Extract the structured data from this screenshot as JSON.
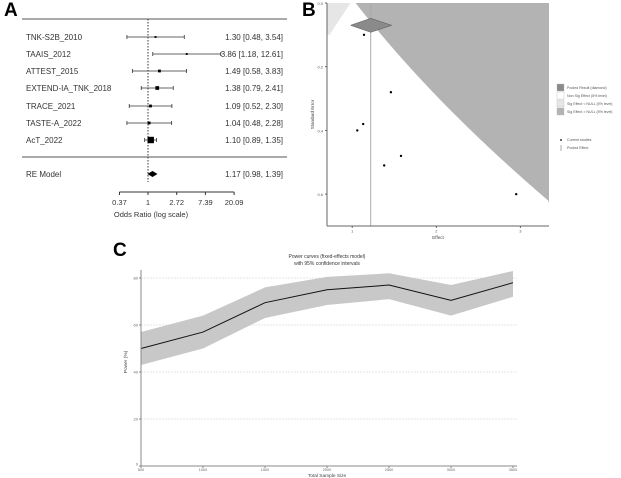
{
  "panels": {
    "a": "A",
    "b": "B",
    "c": "C"
  },
  "chart_data": [
    {
      "type": "forest",
      "panel": "A",
      "xlabel": "Odds Ratio (log scale)",
      "x_scale": "log",
      "x_ticks": [
        0.37,
        1,
        2.72,
        7.39,
        20.09
      ],
      "x_tick_labels": [
        "0.37",
        "1",
        "2.72",
        "7.39",
        "20.09"
      ],
      "reference_line": 1,
      "studies": [
        {
          "name": "TNK-S2B_2010",
          "or": 1.3,
          "lo": 0.48,
          "hi": 3.54,
          "label": "1.30 [0.48,  3.54]",
          "weight": 1
        },
        {
          "name": "TAAIS_2012",
          "or": 3.86,
          "lo": 1.18,
          "hi": 12.61,
          "label": "3.86 [1.18, 12.61]",
          "weight": 1
        },
        {
          "name": "ATTEST_2015",
          "or": 1.49,
          "lo": 0.58,
          "hi": 3.83,
          "label": "1.49 [0.58,  3.83]",
          "weight": 2
        },
        {
          "name": "EXTEND-IA_TNK_2018",
          "or": 1.38,
          "lo": 0.79,
          "hi": 2.41,
          "label": "1.38 [0.79,  2.41]",
          "weight": 3
        },
        {
          "name": "TRACE_2021",
          "or": 1.09,
          "lo": 0.52,
          "hi": 2.3,
          "label": "1.09 [0.52,  2.30]",
          "weight": 2
        },
        {
          "name": "TASTE-A_2022",
          "or": 1.04,
          "lo": 0.48,
          "hi": 2.28,
          "label": "1.04 [0.48,  2.28]",
          "weight": 2
        },
        {
          "name": "AcT_2022",
          "or": 1.1,
          "lo": 0.89,
          "hi": 1.35,
          "label": "1.10 [0.89,  1.35]",
          "weight": 6
        }
      ],
      "summary": {
        "name": "RE Model",
        "or": 1.17,
        "lo": 0.98,
        "hi": 1.39,
        "label": "1.17 [0.98,  1.39]"
      }
    },
    {
      "type": "scatter",
      "panel": "B",
      "xlabel": "Effect",
      "ylabel": "Standard Error",
      "xlim": [
        0.7,
        3.34
      ],
      "ylim": [
        0.7,
        0.0
      ],
      "x_ticks": [
        "1",
        "2",
        "3"
      ],
      "y_ticks": [
        "0.0",
        "0.2",
        "0.4",
        "0.6"
      ],
      "pooled_effect": 1.22,
      "pooled_diamond": {
        "lo": 0.98,
        "hi": 1.47,
        "se": 0.07
      },
      "points": [
        [
          1.14,
          0.1
        ],
        [
          1.46,
          0.28
        ],
        [
          1.13,
          0.38
        ],
        [
          1.06,
          0.4
        ],
        [
          1.38,
          0.51
        ],
        [
          1.58,
          0.48
        ],
        [
          2.95,
          0.6
        ]
      ],
      "legend": {
        "placement": "right",
        "items": [
          {
            "label": "Pooled Result (diamond)",
            "color": "#8a8a8a"
          },
          {
            "label": "Non Sig Effect (5% level)",
            "color": "#ffffff"
          },
          {
            "label": "Sig Effect < NULL (5% level)",
            "color": "#e6e6e6"
          },
          {
            "label": "Sig Effect > NULL (5% level)",
            "color": "#b3b3b3"
          }
        ],
        "markers": [
          {
            "label": "Current studies"
          },
          {
            "label": "Pooled Effect"
          }
        ]
      }
    },
    {
      "type": "line",
      "panel": "C",
      "title": "Power curves (fixed-effects model)",
      "subtitle": "with 95% confidence intervals",
      "xlabel": "Total Sample Size",
      "ylabel": "Power (%)",
      "xlim": [
        500,
        3500
      ],
      "ylim": [
        0,
        80
      ],
      "x": [
        500,
        1000,
        1500,
        2000,
        2500,
        3000,
        3500
      ],
      "y_ticks": [
        0,
        20,
        40,
        60,
        80
      ],
      "grid": true,
      "values": [
        50,
        57,
        69.5,
        75,
        77,
        70.5,
        78
      ],
      "ci_upper": [
        57,
        64,
        76,
        80.5,
        82,
        77,
        83
      ],
      "ci_lower": [
        43,
        50,
        63,
        68.5,
        71,
        64,
        72
      ],
      "band_color": "#c8c8c8"
    }
  ]
}
